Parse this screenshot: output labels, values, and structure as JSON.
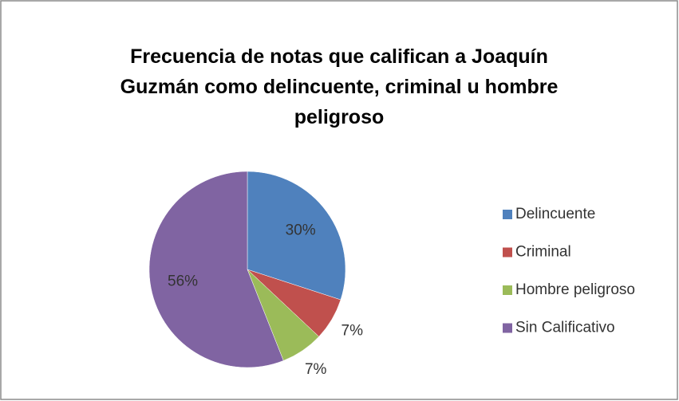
{
  "chart_data": {
    "type": "pie",
    "title": "Frecuencia de notas que califican a Joaquín Guzmán como delincuente, criminal u hombre peligroso",
    "categories": [
      "Delincuente",
      "Criminal",
      "Hombre peligroso",
      "Sin Calificativo"
    ],
    "values": [
      30,
      7,
      7,
      56
    ],
    "value_labels": [
      "30%",
      "7%",
      "7%",
      "56%"
    ],
    "colors": [
      "#4f81bd",
      "#c0504d",
      "#9bbb59",
      "#8064a2"
    ],
    "legend": "right"
  }
}
